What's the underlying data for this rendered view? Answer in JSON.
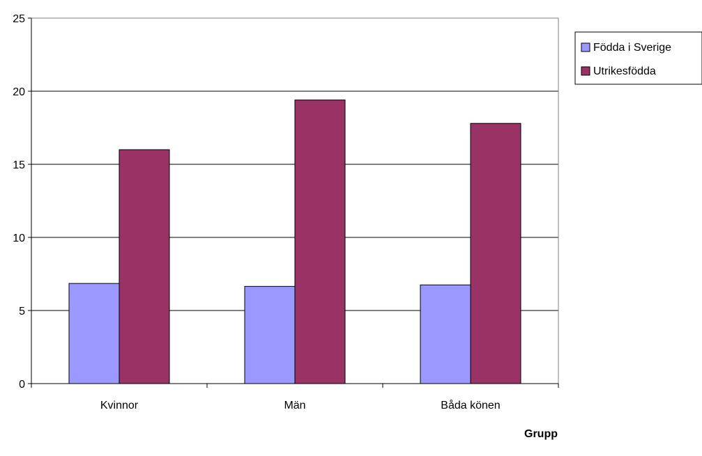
{
  "chart_data": {
    "type": "bar",
    "title": "",
    "xlabel": "Grupp",
    "ylabel": "",
    "categories": [
      "Kvinnor",
      "Män",
      "Båda könen"
    ],
    "series": [
      {
        "name": "Födda i Sverige",
        "values": [
          6.85,
          6.65,
          6.75
        ],
        "color": "#9999ff"
      },
      {
        "name": "Utrikesfödda",
        "values": [
          16.0,
          19.4,
          17.8
        ],
        "color": "#993366"
      }
    ],
    "ylim": [
      0,
      25
    ],
    "yticks": [
      0,
      5,
      10,
      15,
      20,
      25
    ],
    "grid": true,
    "legend_position": "top-right"
  }
}
